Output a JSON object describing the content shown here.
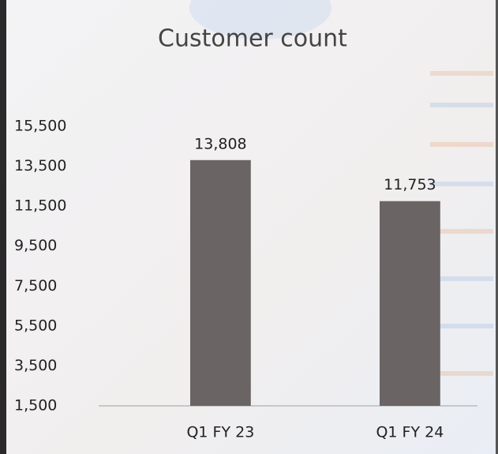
{
  "chart_data": {
    "type": "bar",
    "title": "Customer count",
    "categories": [
      "Q1 FY 23",
      "Q1 FY 24"
    ],
    "values": [
      13808,
      11753
    ],
    "value_labels": [
      "13,808",
      "11,753"
    ],
    "color": "#6a6464",
    "ylim": [
      1500,
      15500
    ],
    "yticks": [
      {
        "value": 1500,
        "label": "1,500"
      },
      {
        "value": 3500,
        "label": "3,500"
      },
      {
        "value": 5500,
        "label": "5,500"
      },
      {
        "value": 7500,
        "label": "7,500"
      },
      {
        "value": 9500,
        "label": "9,500"
      },
      {
        "value": 11500,
        "label": "11,500"
      },
      {
        "value": 13500,
        "label": "13,500"
      },
      {
        "value": 15500,
        "label": "15,500"
      }
    ],
    "grid": false
  }
}
